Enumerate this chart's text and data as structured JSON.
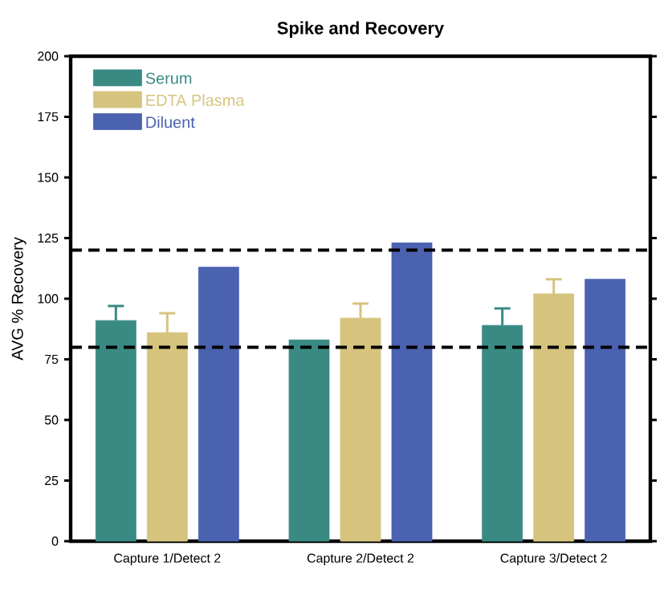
{
  "chart_data": {
    "type": "bar",
    "title": "Spike and Recovery",
    "ylabel": "AVG % Recovery",
    "categories": [
      "Capture 1/Detect 2",
      "Capture 2/Detect 2",
      "Capture 3/Detect 2"
    ],
    "series": [
      {
        "name": "Serum",
        "color": "#3a8a84",
        "values": [
          91,
          83,
          89
        ],
        "errors": [
          6,
          null,
          7
        ]
      },
      {
        "name": "EDTA Plasma",
        "color": "#d6c47e",
        "values": [
          86,
          92,
          102
        ],
        "errors": [
          8,
          6,
          6
        ]
      },
      {
        "name": "Diluent",
        "color": "#4a62b0",
        "values": [
          113,
          123,
          108
        ],
        "errors": [
          null,
          null,
          null
        ]
      }
    ],
    "ylim": [
      0,
      200
    ],
    "yticks": [
      0,
      25,
      50,
      75,
      100,
      125,
      150,
      175,
      200
    ],
    "ref_lines": [
      {
        "axis": "y",
        "value": 120,
        "line_style": "dashed"
      },
      {
        "axis": "y",
        "value": 80,
        "line_style": "dashed"
      }
    ],
    "legend": "top left",
    "grid": false
  }
}
